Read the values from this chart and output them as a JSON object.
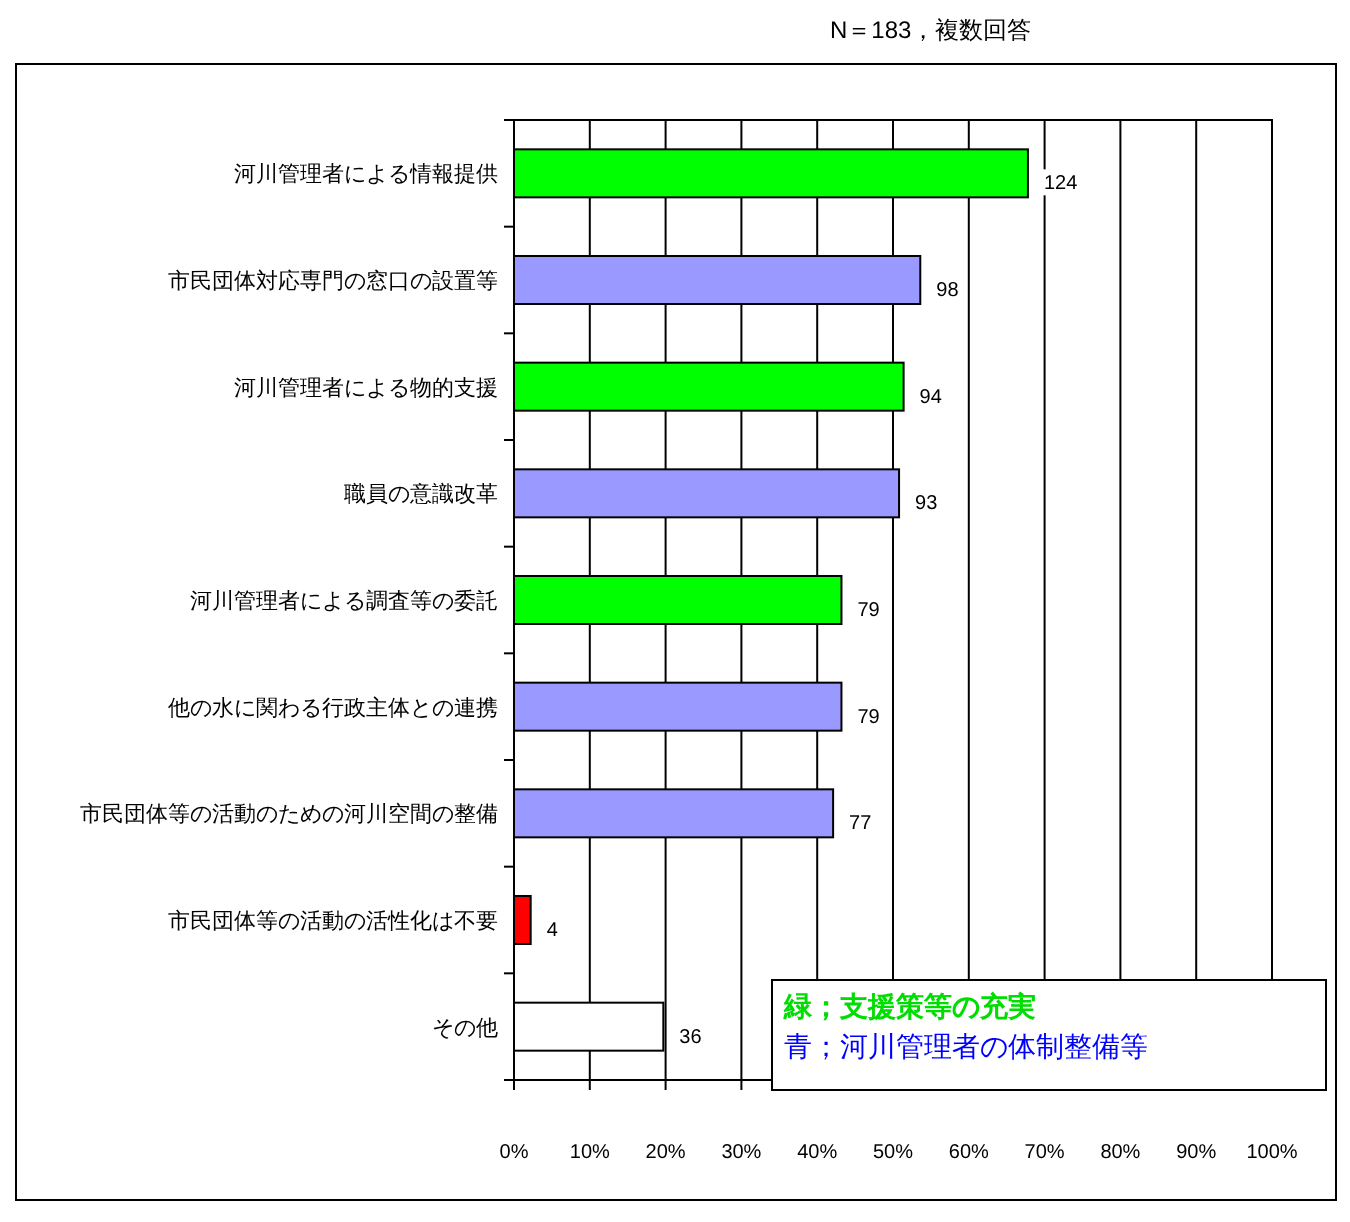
{
  "chart_data": {
    "type": "bar",
    "orientation": "horizontal",
    "categories": [
      "河川管理者による情報提供",
      "市民団体対応専門の窓口の設置等",
      "河川管理者による物的支援",
      "職員の意識改革",
      "河川管理者による調査等の委託",
      "他の水に関わる行政主体との連携",
      "市民団体等の活動のための河川空間の整備",
      "市民団体等の活動の活性化は不要",
      "その他"
    ],
    "values": [
      67.8,
      53.6,
      51.4,
      50.8,
      43.2,
      43.2,
      42.1,
      2.2,
      19.7
    ],
    "colors": [
      "#00ff00",
      "#9999ff",
      "#00ff00",
      "#9999ff",
      "#00ff00",
      "#9999ff",
      "#9999ff",
      "#ff0000",
      "#ffffff"
    ],
    "xlim": [
      0,
      100
    ],
    "xticks": [
      {
        "value": 0,
        "label": "0%"
      },
      {
        "value": 10,
        "label": "10%"
      },
      {
        "value": 20,
        "label": "20%"
      },
      {
        "value": 30,
        "label": "30%"
      },
      {
        "value": 40,
        "label": "40%"
      },
      {
        "value": 50,
        "label": "50%"
      },
      {
        "value": 60,
        "label": "60%"
      },
      {
        "value": 70,
        "label": "70%"
      },
      {
        "value": 80,
        "label": "80%"
      },
      {
        "value": 90,
        "label": "90%"
      },
      {
        "value": 100,
        "label": "100%"
      }
    ],
    "grid": "x",
    "annotations": [
      "N＝183，複数回答",
      "緑；支援策等の充実",
      "青；河川管理者の体制整備等",
      {
        "text": "124",
        "x": 67.8,
        "y": "河川管理者による情報提供"
      },
      {
        "text": "98",
        "x": 53.6,
        "y": "市民団体対応専門の窓口の設置等"
      },
      {
        "text": "94",
        "x": 51.4,
        "y": "河川管理者による物的支援"
      },
      {
        "text": "93",
        "x": 50.8,
        "y": "職員の意識改革"
      },
      {
        "text": "79",
        "x": 43.2,
        "y": "河川管理者による調査等の委託"
      },
      {
        "text": "79",
        "x": 43.2,
        "y": "他の水に関わる行政主体との連携"
      },
      {
        "text": "77",
        "x": 42.1,
        "y": "市民団体等の活動のための河川空間の整備"
      },
      {
        "text": "4",
        "x": 2.2,
        "y": "市民団体等の活動の活性化は不要"
      },
      {
        "text": "36",
        "x": 19.7,
        "y": "その他"
      }
    ]
  }
}
